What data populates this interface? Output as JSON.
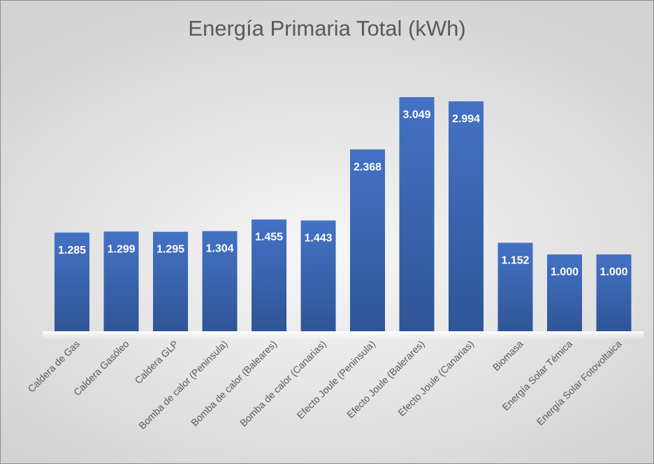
{
  "chart_data": {
    "type": "bar",
    "title": "Energía Primaria Total (kWh)",
    "xlabel": "",
    "ylabel": "",
    "categories": [
      "Caldera de Gas",
      "Caldera Gasóleo",
      "Caldera GLP",
      "Bomba de calor (Peninsula)",
      "Bomba de calor (Baleares)",
      "Bomba de calor (Canarias)",
      "Efecto Joule (Peninsula)",
      "Efecto Joule (Balerares)",
      "Efecto Joule (Canarias)",
      "Biomasa",
      "Energía Solar Témica",
      "Energía Solar Fotovoltaica"
    ],
    "values": [
      1.285,
      1.299,
      1.295,
      1.304,
      1.455,
      1.443,
      2.368,
      3.049,
      2.994,
      1.152,
      1.0,
      1.0
    ],
    "data_labels": [
      "1.285",
      "1.299",
      "1.295",
      "1.304",
      "1.455",
      "1.443",
      "2.368",
      "3.049",
      "2.994",
      "1.152",
      "1.000",
      "1.000"
    ],
    "ylim": [
      0,
      3.049
    ],
    "grid": false,
    "legend": "none",
    "colors": {
      "bar": "#4472c4",
      "bar_dark": "#2f5597",
      "label": "#ffffff",
      "axis_text": "#595959"
    }
  }
}
